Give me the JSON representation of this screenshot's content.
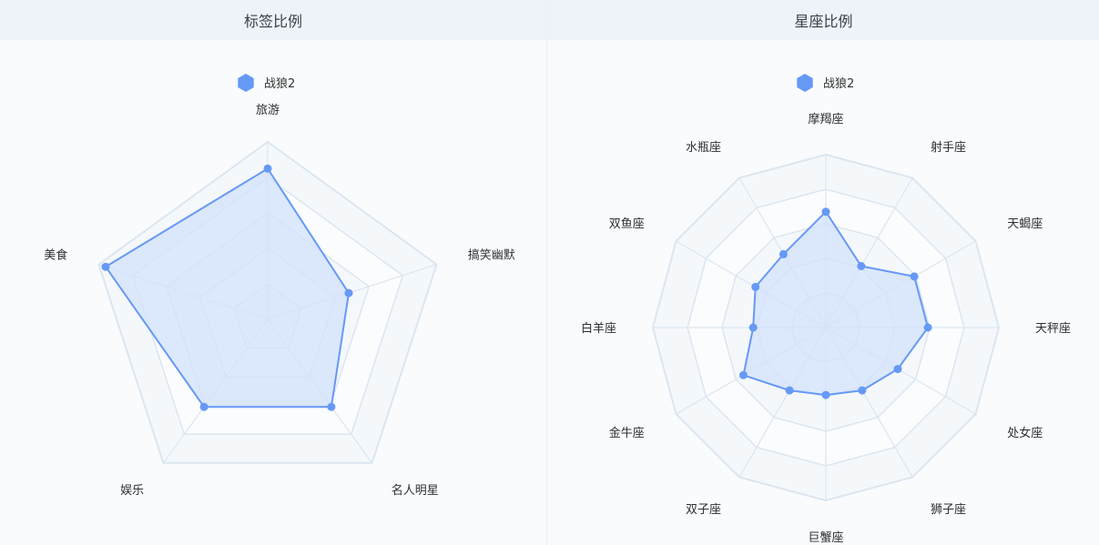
{
  "panels": [
    {
      "title": "标签比例"
    },
    {
      "title": "星座比例"
    }
  ],
  "chart_data": [
    {
      "type": "radar",
      "title": "标签比例",
      "legend": [
        "战狼2"
      ],
      "legend_position": "top-center",
      "indicators": [
        "旅游",
        "搞笑幽默",
        "名人明星",
        "娱乐",
        "美食"
      ],
      "max": 100,
      "series": [
        {
          "name": "战狼2",
          "values": [
            85,
            48,
            61,
            61,
            96
          ]
        }
      ],
      "color": "#6699f5",
      "area_color": "#d3e2fb",
      "grid_color": "#dbe6f0"
    },
    {
      "type": "radar",
      "title": "星座比例",
      "legend": [
        "战狼2"
      ],
      "legend_position": "top-center",
      "indicators": [
        "摩羯座",
        "射手座",
        "天蝎座",
        "天秤座",
        "处女座",
        "狮子座",
        "巨蟹座",
        "双子座",
        "金牛座",
        "白羊座",
        "双鱼座",
        "水瓶座"
      ],
      "max": 100,
      "series": [
        {
          "name": "战狼2",
          "values": [
            67,
            41,
            59,
            59,
            48,
            42,
            39,
            42,
            55,
            42,
            47,
            49
          ]
        }
      ],
      "color": "#6699f5",
      "area_color": "#d3e2fb",
      "grid_color": "#dbe6f0"
    }
  ]
}
